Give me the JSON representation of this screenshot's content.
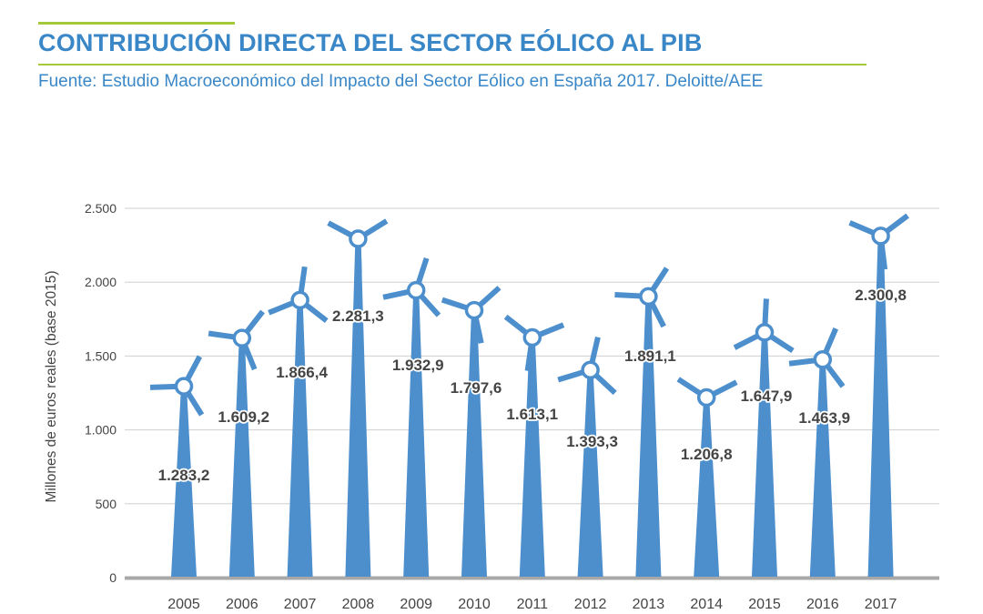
{
  "header": {
    "title": "CONTRIBUCIÓN DIRECTA DEL SECTOR EÓLICO AL PIB",
    "subtitle": "Fuente: Estudio Macroeconómico del Impacto del Sector Eólico en España 2017. Deloitte/AEE"
  },
  "colors": {
    "turbine": "#4d8fcc",
    "accent_line": "#a6c93c",
    "title": "#3a87c8",
    "grid": "#cfcfcf",
    "axis": "#a8a8a8"
  },
  "chart_data": {
    "type": "bar",
    "style": "wind-turbine pictogram",
    "title": "CONTRIBUCIÓN DIRECTA DEL SECTOR EÓLICO AL PIB",
    "xlabel": "",
    "ylabel": "Millones de euros reales (base 2015)",
    "ylim": [
      0,
      2500
    ],
    "yticks": [
      0,
      500,
      1000,
      1500,
      2000,
      2500
    ],
    "ytick_labels": [
      "0",
      "500",
      "1.000",
      "1.500",
      "2.000",
      "2.500"
    ],
    "grid": true,
    "categories": [
      "2005",
      "2006",
      "2007",
      "2008",
      "2009",
      "2010",
      "2011",
      "2012",
      "2013",
      "2014",
      "2015",
      "2016",
      "2017"
    ],
    "values": [
      1283.2,
      1609.2,
      1866.4,
      2281.3,
      1932.9,
      1797.6,
      1613.1,
      1393.3,
      1891.1,
      1206.8,
      1647.9,
      1463.9,
      2300.8
    ],
    "value_labels": [
      "1.283,2",
      "1.609,2",
      "1.866,4",
      "2.281,3",
      "1.932,9",
      "1.797,6",
      "1.613,1",
      "1.393,3",
      "1.891,1",
      "1.206,8",
      "1.647,9",
      "1.463,9",
      "2.300,8"
    ]
  }
}
